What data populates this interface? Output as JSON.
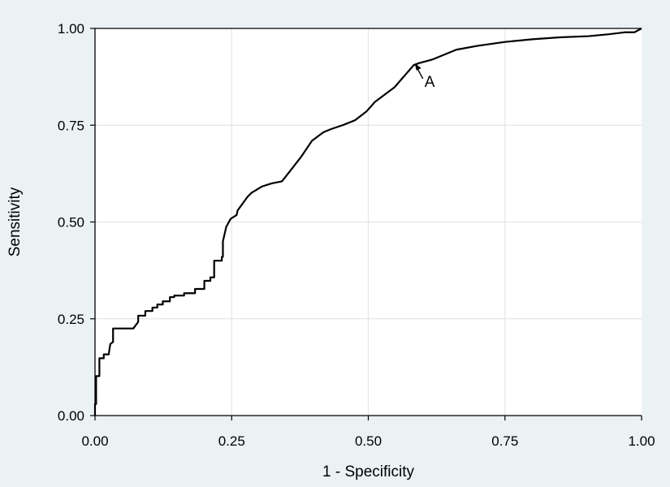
{
  "chart_data": {
    "type": "line",
    "title": "",
    "xlabel": "1 - Specificity",
    "ylabel": "Sensitivity",
    "xlim": [
      0,
      1
    ],
    "ylim": [
      0,
      1
    ],
    "x_ticks": [
      "0.00",
      "0.25",
      "0.50",
      "0.75",
      "1.00"
    ],
    "y_ticks": [
      "0.00",
      "0.25",
      "0.50",
      "0.75",
      "1.00"
    ],
    "grid": true,
    "series": [
      {
        "name": "",
        "color": "#000000",
        "x": [
          0.0,
          0.0,
          0.002,
          0.002,
          0.008,
          0.008,
          0.016,
          0.016,
          0.025,
          0.028,
          0.028,
          0.033,
          0.033,
          0.045,
          0.07,
          0.079,
          0.079,
          0.092,
          0.092,
          0.105,
          0.105,
          0.114,
          0.114,
          0.124,
          0.124,
          0.137,
          0.137,
          0.145,
          0.145,
          0.163,
          0.163,
          0.183,
          0.183,
          0.2,
          0.2,
          0.211,
          0.211,
          0.218,
          0.218,
          0.232,
          0.232,
          0.234,
          0.234,
          0.24,
          0.248,
          0.259,
          0.261,
          0.279,
          0.286,
          0.306,
          0.324,
          0.342,
          0.356,
          0.377,
          0.397,
          0.418,
          0.432,
          0.453,
          0.476,
          0.497,
          0.512,
          0.548,
          0.583,
          0.592,
          0.618,
          0.661,
          0.7,
          0.75,
          0.8,
          0.85,
          0.903,
          0.94,
          0.97,
          0.987,
          1.0
        ],
        "y": [
          0.0,
          0.03,
          0.03,
          0.102,
          0.102,
          0.148,
          0.148,
          0.158,
          0.158,
          0.185,
          0.185,
          0.19,
          0.225,
          0.225,
          0.225,
          0.242,
          0.258,
          0.258,
          0.27,
          0.27,
          0.279,
          0.279,
          0.287,
          0.287,
          0.295,
          0.295,
          0.306,
          0.306,
          0.31,
          0.31,
          0.316,
          0.316,
          0.327,
          0.327,
          0.348,
          0.348,
          0.357,
          0.357,
          0.4,
          0.4,
          0.41,
          0.41,
          0.45,
          0.487,
          0.508,
          0.518,
          0.53,
          0.565,
          0.575,
          0.592,
          0.6,
          0.605,
          0.63,
          0.668,
          0.71,
          0.732,
          0.74,
          0.75,
          0.763,
          0.786,
          0.81,
          0.848,
          0.905,
          0.91,
          0.92,
          0.945,
          0.955,
          0.965,
          0.972,
          0.977,
          0.98,
          0.985,
          0.99,
          0.99,
          1.0
        ]
      }
    ],
    "reference_line": {
      "x": [
        0,
        1
      ],
      "y": [
        1,
        1
      ],
      "color": "#000000"
    },
    "annotations": [
      {
        "text": "A",
        "x": 0.585,
        "y": 0.91
      }
    ]
  }
}
